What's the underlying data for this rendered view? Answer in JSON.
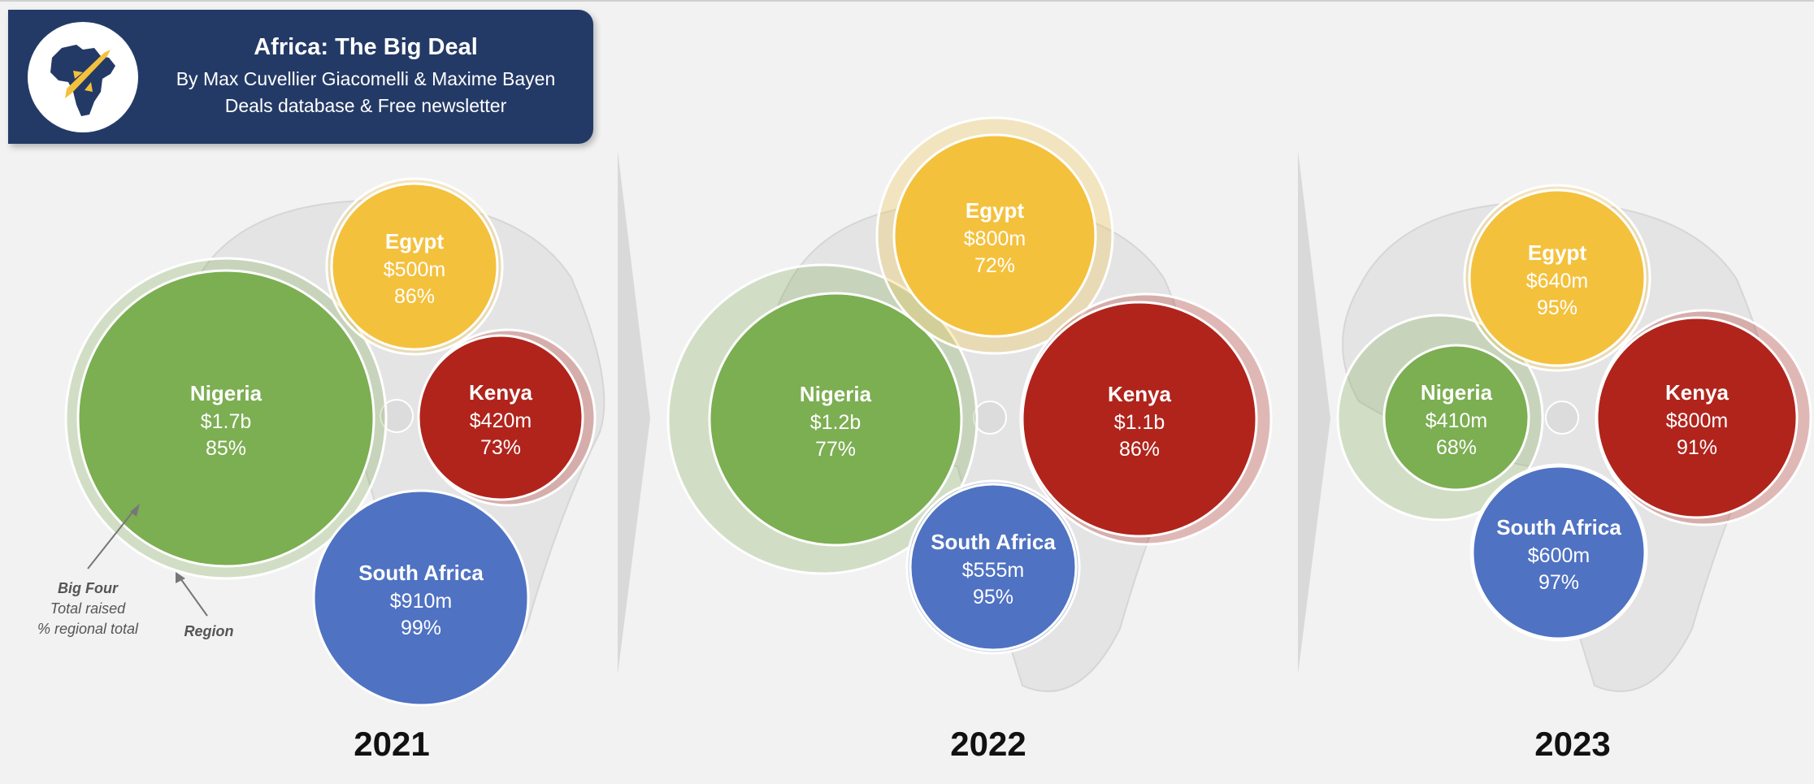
{
  "header": {
    "title": "Africa: The Big Deal",
    "byline": "By Max Cuvellier Giacomelli & Maxime Bayen",
    "tagline": "Deals database & Free newsletter"
  },
  "legend": {
    "bubble_label_lines": [
      "Big Four",
      "Total raised",
      "% regional total"
    ],
    "ring_label": "Region"
  },
  "colors": {
    "Nigeria": "#7cae52",
    "Egypt": "#f4c13d",
    "Kenya": "#b0241c",
    "South Africa": "#4f72c2",
    "header_bg": "#243a66"
  },
  "chart_data": [
    {
      "type": "bubble",
      "year": "2021",
      "series": [
        {
          "name": "Nigeria",
          "total_label": "$1.7b",
          "total_usd_m": 1700,
          "share_label": "85%",
          "share_pct": 85
        },
        {
          "name": "Egypt",
          "total_label": "$500m",
          "total_usd_m": 500,
          "share_label": "86%",
          "share_pct": 86
        },
        {
          "name": "Kenya",
          "total_label": "$420m",
          "total_usd_m": 420,
          "share_label": "73%",
          "share_pct": 73
        },
        {
          "name": "South Africa",
          "total_label": "$910m",
          "total_usd_m": 910,
          "share_label": "99%",
          "share_pct": 99
        }
      ]
    },
    {
      "type": "bubble",
      "year": "2022",
      "series": [
        {
          "name": "Nigeria",
          "total_label": "$1.2b",
          "total_usd_m": 1200,
          "share_label": "77%",
          "share_pct": 77
        },
        {
          "name": "Egypt",
          "total_label": "$800m",
          "total_usd_m": 800,
          "share_label": "72%",
          "share_pct": 72
        },
        {
          "name": "Kenya",
          "total_label": "$1.1b",
          "total_usd_m": 1100,
          "share_label": "86%",
          "share_pct": 86
        },
        {
          "name": "South Africa",
          "total_label": "$555m",
          "total_usd_m": 555,
          "share_label": "95%",
          "share_pct": 95
        }
      ]
    },
    {
      "type": "bubble",
      "year": "2023",
      "series": [
        {
          "name": "Nigeria",
          "total_label": "$410m",
          "total_usd_m": 410,
          "share_label": "68%",
          "share_pct": 68
        },
        {
          "name": "Egypt",
          "total_label": "$640m",
          "total_usd_m": 640,
          "share_label": "95%",
          "share_pct": 95
        },
        {
          "name": "Kenya",
          "total_label": "$800m",
          "total_usd_m": 800,
          "share_label": "91%",
          "share_pct": 91
        },
        {
          "name": "South Africa",
          "total_label": "$600m",
          "total_usd_m": 600,
          "share_label": "97%",
          "share_pct": 97
        }
      ]
    }
  ]
}
